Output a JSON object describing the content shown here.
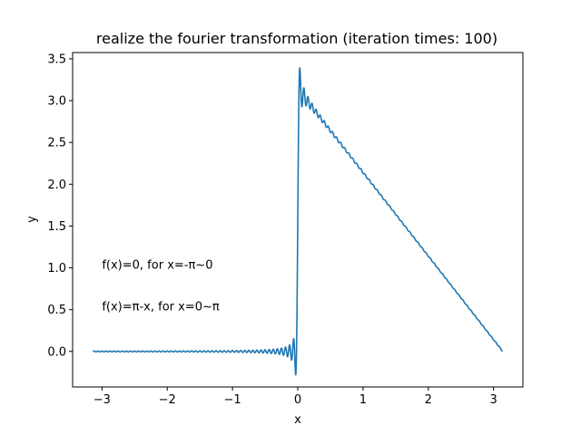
{
  "chart_data": {
    "type": "line",
    "title": "realize the fourier transformation (iteration times: 100)",
    "xlabel": "x",
    "ylabel": "y",
    "xlim": [
      -3.45,
      3.45
    ],
    "ylim": [
      -0.425,
      3.575
    ],
    "xticks": [
      -3,
      -2,
      -1,
      0,
      1,
      2,
      3
    ],
    "xtick_labels": [
      "−3",
      "−2",
      "−1",
      "0",
      "1",
      "2",
      "3"
    ],
    "yticks": [
      0.0,
      0.5,
      1.0,
      1.5,
      2.0,
      2.5,
      3.0,
      3.5
    ],
    "ytick_labels": [
      "0.0",
      "0.5",
      "1.0",
      "1.5",
      "2.0",
      "2.5",
      "3.0",
      "3.5"
    ],
    "grid": false,
    "annotations": [
      {
        "text": "f(x)=0, for x=-π~0",
        "x": -3.0,
        "y": 1.0
      },
      {
        "text": "f(x)=π-x, for x=0~π",
        "x": -3.0,
        "y": 0.5
      }
    ],
    "series": [
      {
        "color": "#1f77b4",
        "fourier_terms": 100,
        "x_range": [
          -3.14159,
          3.14159
        ]
      }
    ]
  }
}
